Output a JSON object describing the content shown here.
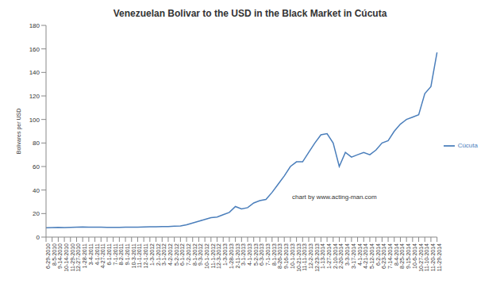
{
  "chart_data": {
    "type": "line",
    "title": "Venezuelan Bolivar to the USD in the Black Market in Cúcuta",
    "y_label": "Bolivares per USD",
    "annotation": "chart by  www.acting-man.com",
    "x": [
      "6-29-2010",
      "8-5-2010",
      "9-14-2010",
      "10-14-2010",
      "11-29-2010",
      "12-27-2010",
      "1-28-2011",
      "3-4-2011",
      "4-1-2011",
      "4-27-2011",
      "6-1-2011",
      "7-1-2011",
      "8-2-2011",
      "9-1-2011",
      "10-3-2011",
      "11-1-2011",
      "12-1-2011",
      "1-3-2012",
      "2-1-2012",
      "3-1-2012",
      "4-2-2012",
      "5-2-2012",
      "6-1-2012",
      "7-2-2012",
      "8-1-2012",
      "9-3-2012",
      "10-1-2012",
      "11-1-2012",
      "12-3-2012",
      "1-3-2013",
      "1-28-2013",
      "2-11-2013",
      "3-1-2013",
      "4-1-2013",
      "5-2-2013",
      "6-3-2013",
      "7-1-2013",
      "8-1-2013",
      "8-26-2013",
      "9-16-2013",
      "10-1-2013",
      "10-21-2013",
      "11-11-2013",
      "12-2-2013",
      "12-23-2013",
      "1-13-2014",
      "1-27-2014",
      "2-10-2014",
      "2-20-2014",
      "3-3-2014",
      "3-17-2014",
      "4-1-2014",
      "4-21-2014",
      "5-12-2014",
      "6-2-2014",
      "6-23-2014",
      "7-14-2014",
      "8-4-2014",
      "8-25-2014",
      "9-15-2014",
      "10-6-2014",
      "10-27-2014",
      "11-10-2014",
      "11-20-2014",
      "11-29-2014"
    ],
    "series": [
      {
        "name": "Cúcuta",
        "color": "#4a7ebb",
        "values": [
          8.0,
          8.1,
          8.2,
          8.1,
          8.3,
          8.4,
          8.6,
          8.5,
          8.4,
          8.4,
          8.3,
          8.3,
          8.3,
          8.4,
          8.4,
          8.5,
          8.6,
          8.7,
          8.8,
          8.9,
          9.0,
          9.2,
          9.5,
          10.5,
          12,
          13.5,
          15,
          16.5,
          17,
          19,
          21,
          26,
          24,
          25,
          29,
          31,
          32,
          38,
          45,
          52,
          60,
          64,
          64,
          72,
          80,
          87,
          88,
          80,
          60,
          72,
          68,
          70,
          72,
          70,
          74,
          80,
          82,
          90,
          96,
          100,
          102,
          104,
          122,
          128,
          157
        ]
      }
    ],
    "ylim": [
      0,
      180
    ],
    "yticks": [
      0,
      20,
      40,
      60,
      80,
      100,
      120,
      140,
      160,
      180
    ],
    "grid": false,
    "legend": "right"
  }
}
